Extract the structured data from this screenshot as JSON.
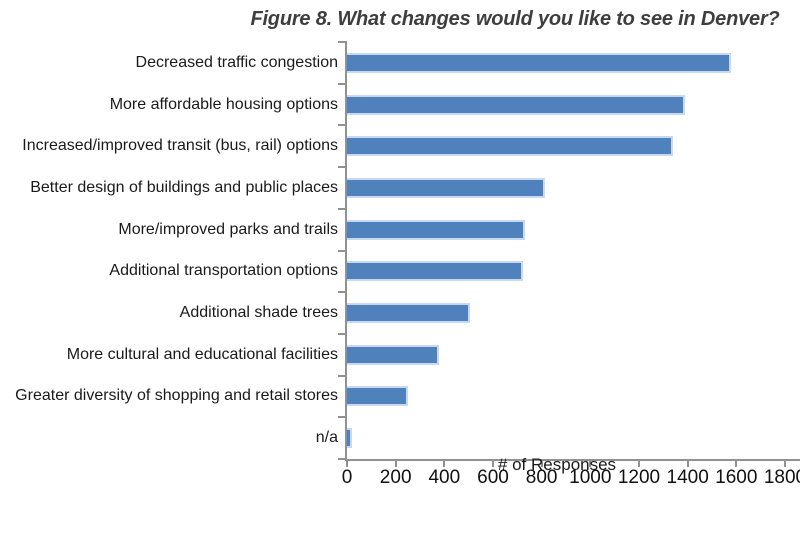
{
  "chart_data": {
    "type": "bar",
    "orientation": "horizontal",
    "title": "Figure 8. What changes would you like to see in Denver?",
    "xlabel": "# of Responses",
    "ylabel": "",
    "categories": [
      "Decreased traffic congestion",
      "More affordable housing options",
      "Increased/improved transit (bus, rail) options",
      "Better design of buildings and public places",
      "More/improved parks and trails",
      "Additional transportation options",
      "Additional shade trees",
      "More cultural and educational facilities",
      "Greater diversity of shopping and retail stores",
      "n/a"
    ],
    "values": [
      1580,
      1390,
      1340,
      815,
      730,
      725,
      505,
      380,
      250,
      20
    ],
    "xticks": [
      0,
      200,
      400,
      600,
      800,
      1000,
      1200,
      1400,
      1600,
      1800
    ],
    "xlim": [
      0,
      1870
    ],
    "grid": false,
    "legend": "none",
    "bar_color": "#4f81bd",
    "bar_border_color": "#c6d9f0",
    "axis_color": "#919191"
  }
}
